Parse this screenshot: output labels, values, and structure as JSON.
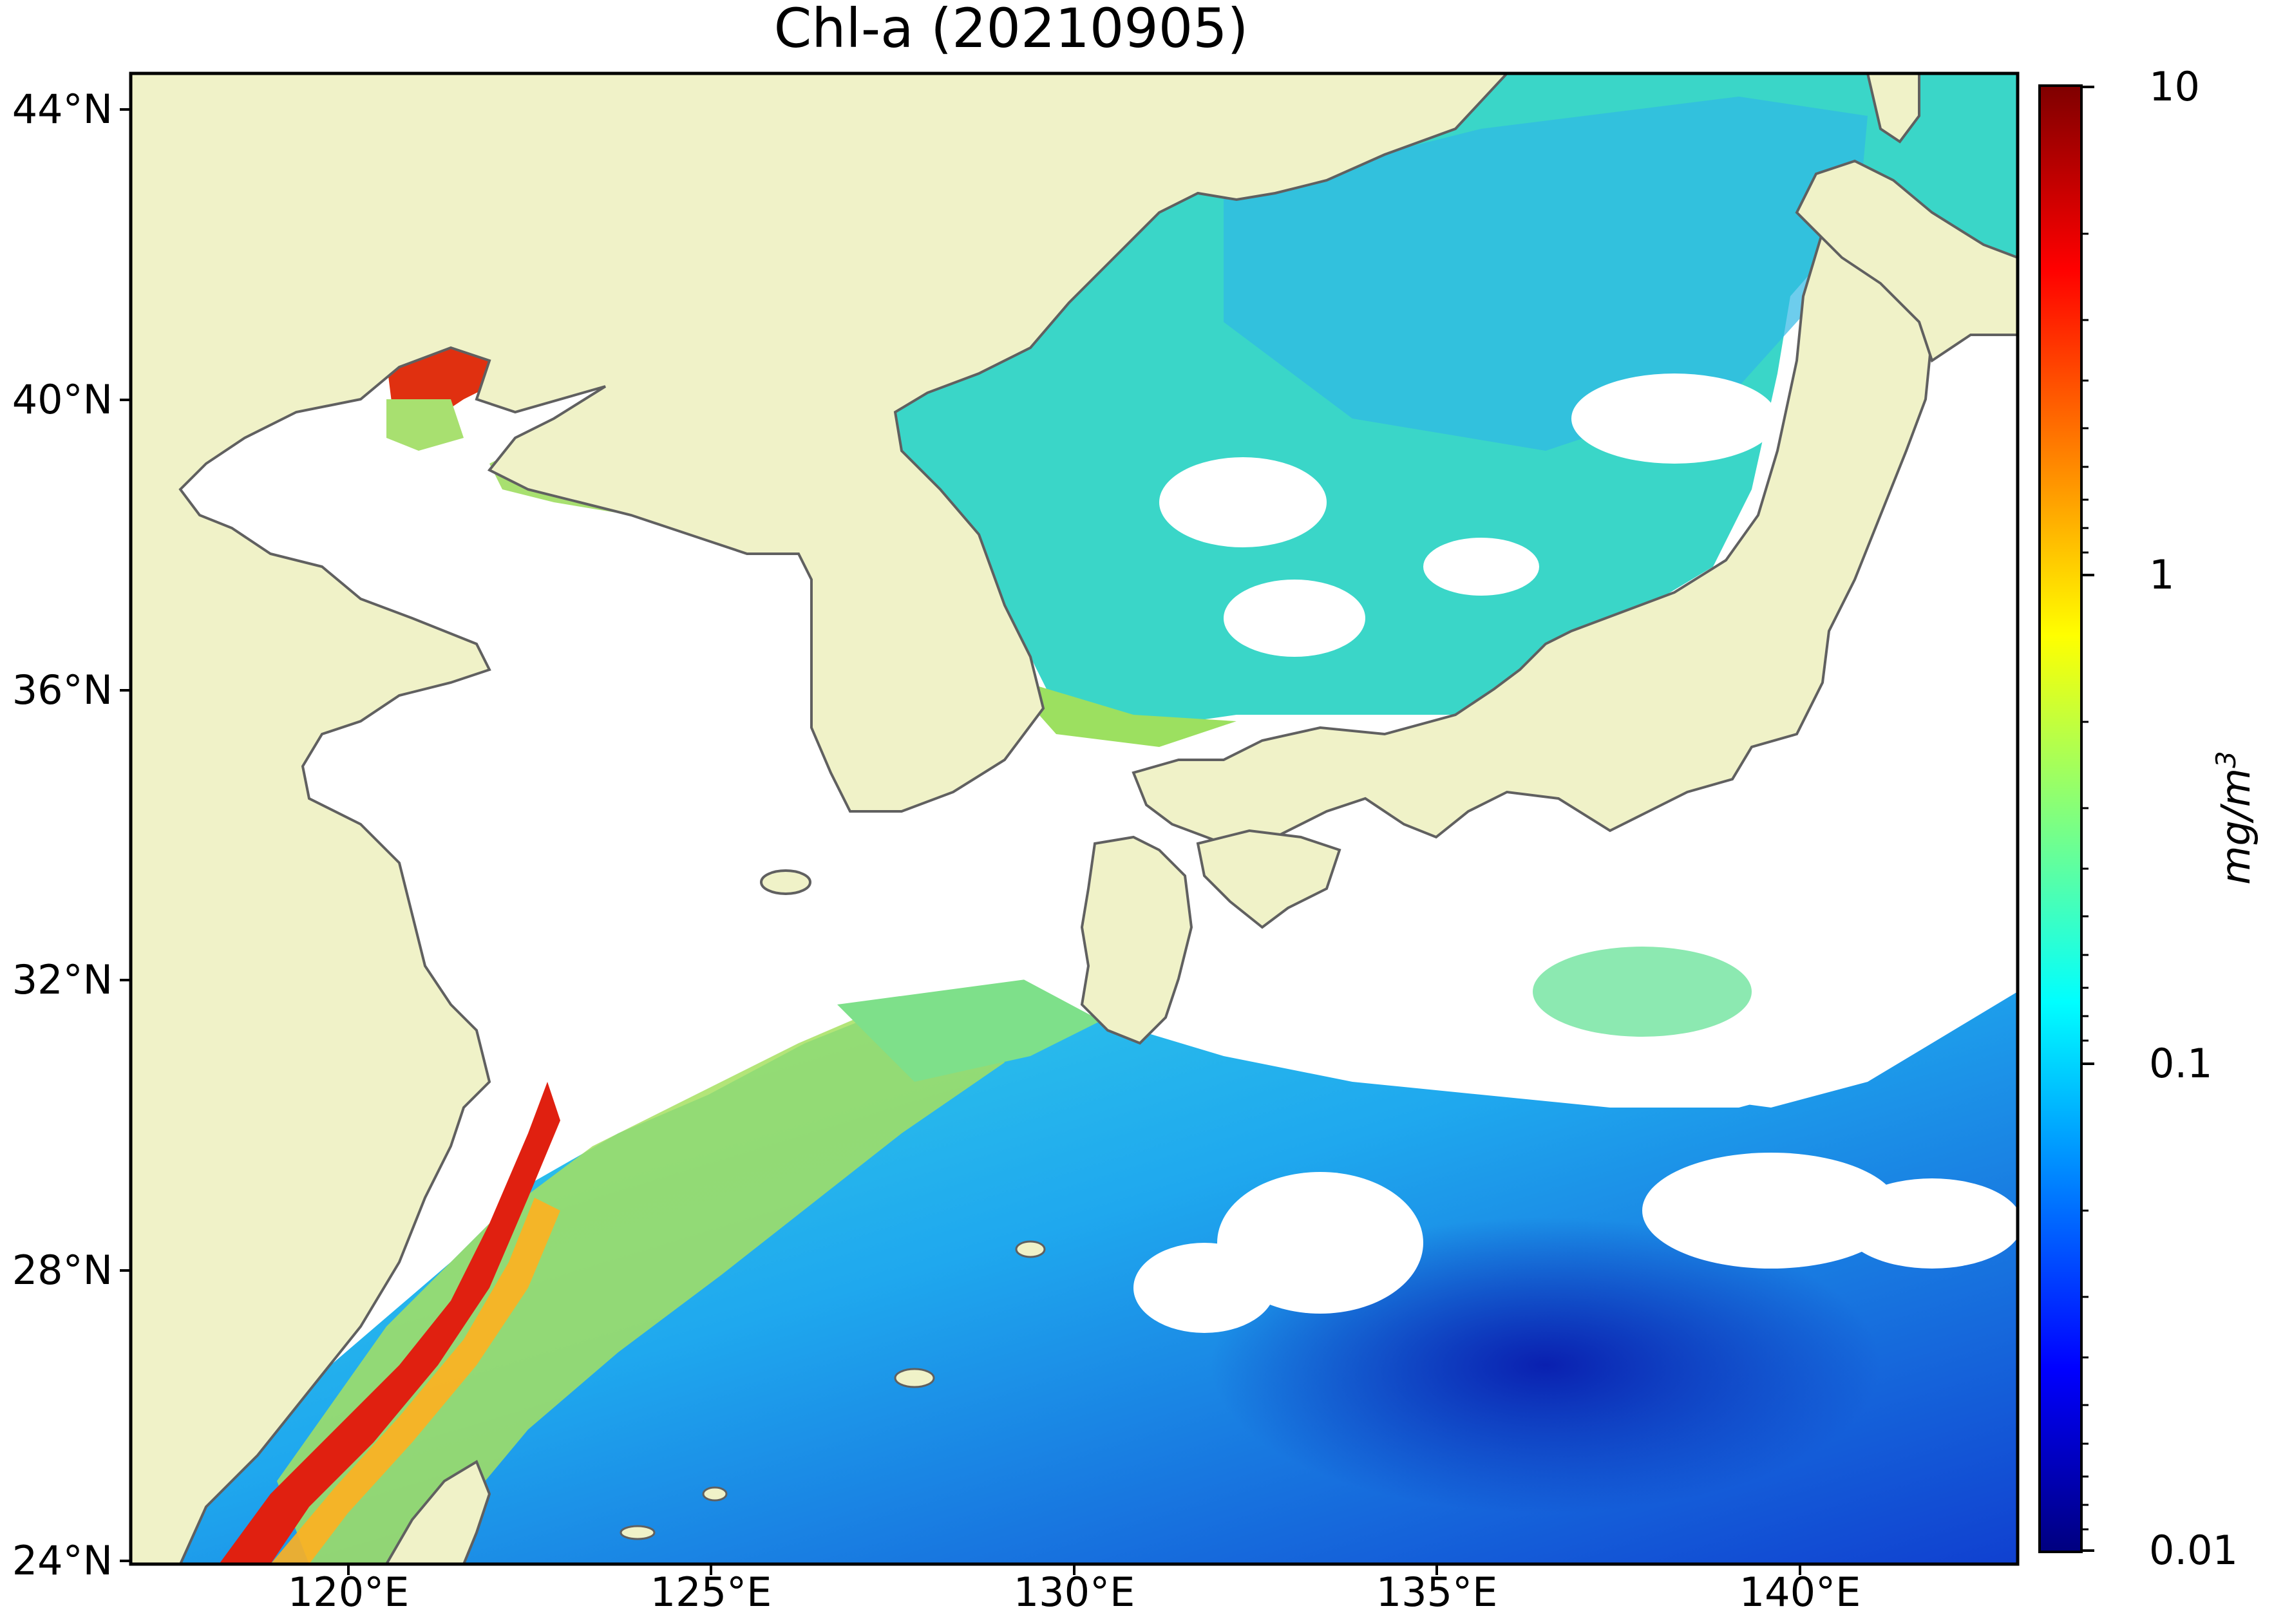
{
  "title": "Chl-a (20210905)",
  "colors": {
    "land": "#f0f2c8",
    "ocean_missing": "#ffffff",
    "coastline": "#606060",
    "colormap": "jet"
  },
  "map": {
    "projection": "equirectangular",
    "lon_range": [
      117,
      143
    ],
    "lat_range": [
      24,
      44.5
    ],
    "lat_ticks": [
      "44°N",
      "40°N",
      "36°N",
      "32°N",
      "28°N",
      "24°N"
    ],
    "lon_ticks": [
      "120°E",
      "125°E",
      "130°E",
      "135°E",
      "140°E"
    ]
  },
  "colorbar": {
    "scale": "log",
    "range": [
      0.01,
      10
    ],
    "tick_labels": [
      "10",
      "1",
      "0.1",
      "0.01"
    ],
    "unit": "mg/m",
    "unit_exp": "3"
  }
}
